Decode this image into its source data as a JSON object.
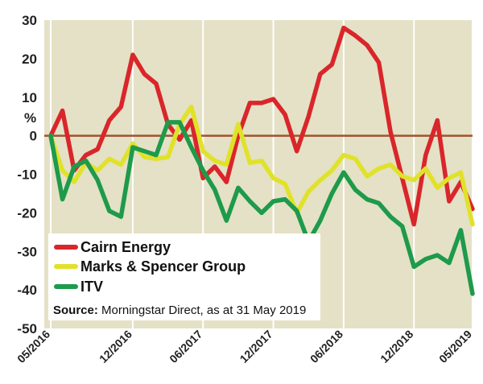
{
  "chart_data": {
    "type": "line",
    "y_unit": "%",
    "ylim": [
      -50,
      30
    ],
    "y_ticks": [
      "30",
      "20",
      "10",
      "0",
      "-10",
      "-20",
      "-30",
      "-40",
      "-50"
    ],
    "y_tick_values": [
      30,
      20,
      10,
      0,
      -10,
      -20,
      -30,
      -40,
      -50
    ],
    "x_tick_labels": [
      "05/2016",
      "12/2016",
      "06/2017",
      "12/2017",
      "06/2018",
      "12/2018",
      "05/2019"
    ],
    "x_tick_index": [
      0,
      7,
      13,
      19,
      25,
      31,
      36
    ],
    "x": [
      "05/2016",
      "06/2016",
      "07/2016",
      "08/2016",
      "09/2016",
      "10/2016",
      "11/2016",
      "12/2016",
      "01/2017",
      "02/2017",
      "03/2017",
      "04/2017",
      "05/2017",
      "06/2017",
      "07/2017",
      "08/2017",
      "09/2017",
      "10/2017",
      "11/2017",
      "12/2017",
      "01/2018",
      "02/2018",
      "03/2018",
      "04/2018",
      "05/2018",
      "06/2018",
      "07/2018",
      "08/2018",
      "09/2018",
      "10/2018",
      "11/2018",
      "12/2018",
      "01/2019",
      "02/2019",
      "03/2019",
      "04/2019",
      "05/2019"
    ],
    "series": [
      {
        "name": "Cairn Energy",
        "color": "#d9262b",
        "values": [
          0,
          6.5,
          -9,
          -5,
          -3.5,
          4,
          7.5,
          21,
          16,
          13.5,
          3,
          -1,
          4,
          -11,
          -8,
          -12,
          0,
          8.5,
          8.5,
          9.5,
          5.5,
          -4,
          5,
          16,
          18.5,
          28,
          26,
          23.5,
          19,
          1,
          -11,
          -23,
          -5,
          4,
          -17,
          -12,
          -19
        ]
      },
      {
        "name": "Marks & Spencer Group",
        "color": "#e0e22a",
        "values": [
          0,
          -9,
          -12,
          -7,
          -9,
          -6,
          -7.5,
          -2,
          -5.5,
          -6,
          -5.5,
          3,
          7.5,
          -4,
          -6.5,
          -7.5,
          3,
          -7,
          -6.5,
          -11,
          -12.5,
          -20,
          -14.5,
          -11.5,
          -9,
          -5,
          -6,
          -10.5,
          -8.5,
          -7.5,
          -10.5,
          -11.5,
          -8.5,
          -13.5,
          -11,
          -9.5,
          -23
        ]
      },
      {
        "name": "ITV",
        "color": "#1e9a4b",
        "values": [
          0,
          -16.5,
          -8,
          -6.5,
          -11.5,
          -19.5,
          -21,
          -3,
          -4,
          -5,
          3.5,
          3.5,
          -3,
          -9,
          -14,
          -22,
          -13.5,
          -17,
          -20,
          -17,
          -16.5,
          -19.5,
          -27.5,
          -22,
          -15,
          -9.5,
          -14,
          -16.5,
          -17.5,
          -21,
          -23.5,
          -34,
          -32,
          -31,
          -33,
          -24.5,
          -41
        ]
      }
    ],
    "source_label": "Source:",
    "source_text": " Morningstar Direct, as at 31 May 2019",
    "colors": {
      "panel": "#e4e1c6",
      "zero_line": "#a0522d",
      "grid": "#ffffff"
    }
  }
}
